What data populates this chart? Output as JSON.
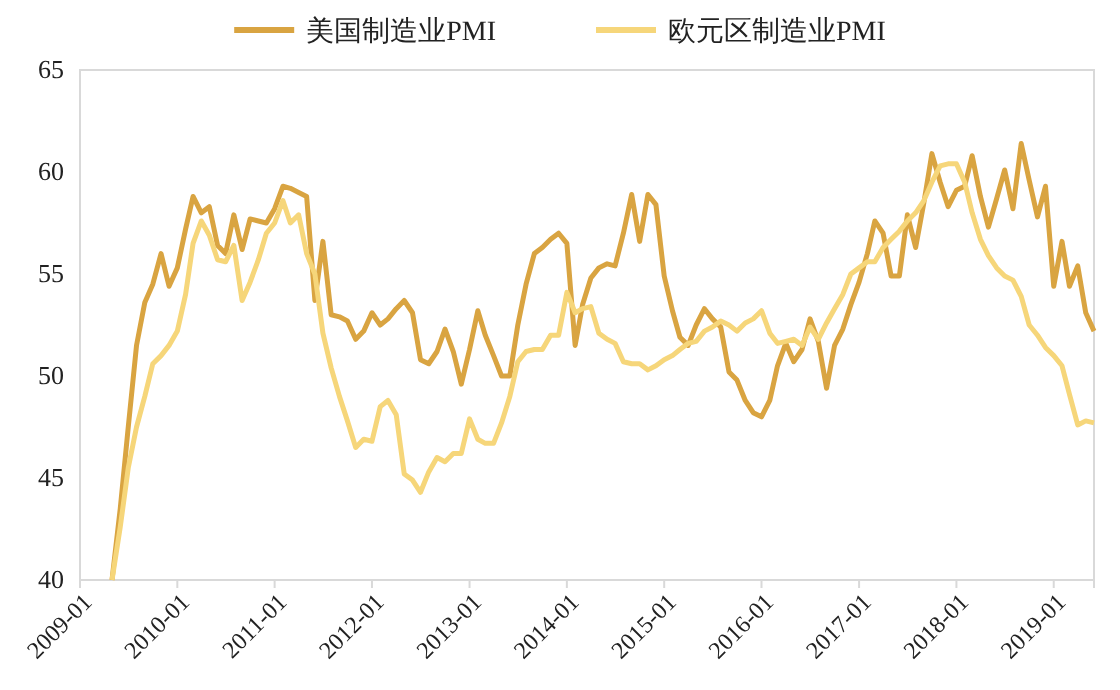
{
  "chart_data": {
    "type": "line",
    "x": [
      "2009-05",
      "2009-06",
      "2009-07",
      "2009-08",
      "2009-09",
      "2009-10",
      "2009-11",
      "2009-12",
      "2010-01",
      "2010-02",
      "2010-03",
      "2010-04",
      "2010-05",
      "2010-06",
      "2010-07",
      "2010-08",
      "2010-09",
      "2010-10",
      "2010-11",
      "2010-12",
      "2011-01",
      "2011-02",
      "2011-03",
      "2011-04",
      "2011-05",
      "2011-06",
      "2011-07",
      "2011-08",
      "2011-09",
      "2011-10",
      "2011-11",
      "2011-12",
      "2012-01",
      "2012-02",
      "2012-03",
      "2012-04",
      "2012-05",
      "2012-06",
      "2012-07",
      "2012-08",
      "2012-09",
      "2012-10",
      "2012-11",
      "2012-12",
      "2013-01",
      "2013-02",
      "2013-03",
      "2013-04",
      "2013-05",
      "2013-06",
      "2013-07",
      "2013-08",
      "2013-09",
      "2013-10",
      "2013-11",
      "2013-12",
      "2014-01",
      "2014-02",
      "2014-03",
      "2014-04",
      "2014-05",
      "2014-06",
      "2014-07",
      "2014-08",
      "2014-09",
      "2014-10",
      "2014-11",
      "2014-12",
      "2015-01",
      "2015-02",
      "2015-03",
      "2015-04",
      "2015-05",
      "2015-06",
      "2015-07",
      "2015-08",
      "2015-09",
      "2015-10",
      "2015-11",
      "2015-12",
      "2016-01",
      "2016-02",
      "2016-03",
      "2016-04",
      "2016-05",
      "2016-06",
      "2016-07",
      "2016-08",
      "2016-09",
      "2016-10",
      "2016-11",
      "2016-12",
      "2017-01",
      "2017-02",
      "2017-03",
      "2017-04",
      "2017-05",
      "2017-06",
      "2017-07",
      "2017-08",
      "2017-09",
      "2017-10",
      "2017-11",
      "2017-12",
      "2018-01",
      "2018-02",
      "2018-03",
      "2018-04",
      "2018-05",
      "2018-06",
      "2018-07",
      "2018-08",
      "2018-09",
      "2018-10",
      "2018-11",
      "2018-12",
      "2019-01",
      "2019-02",
      "2019-03",
      "2019-04",
      "2019-05",
      "2019-06"
    ],
    "series": [
      {
        "name": "美国制造业PMI",
        "color": "#d9a441",
        "values": [
          40,
          43.5,
          47.5,
          51.5,
          53.6,
          54.5,
          56.0,
          54.4,
          55.3,
          57.2,
          58.8,
          58.0,
          58.3,
          56.4,
          56.0,
          57.9,
          56.2,
          57.7,
          57.6,
          57.5,
          58.2,
          59.3,
          59.2,
          59.0,
          58.8,
          53.7,
          56.6,
          53.0,
          52.9,
          52.7,
          51.8,
          52.2,
          53.1,
          52.5,
          52.8,
          53.3,
          53.7,
          53.1,
          50.8,
          50.6,
          51.2,
          52.3,
          51.2,
          49.6,
          51.3,
          53.2,
          52.0,
          51.0,
          50.0,
          50.0,
          52.5,
          54.5,
          56.0,
          56.3,
          56.7,
          57.0,
          56.5,
          51.5,
          53.5,
          54.8,
          55.3,
          55.5,
          55.4,
          57.0,
          58.9,
          56.6,
          58.9,
          58.4,
          54.9,
          53.2,
          51.9,
          51.5,
          52.5,
          53.3,
          52.8,
          52.4,
          50.2,
          49.8,
          48.8,
          48.2,
          48.0,
          48.8,
          50.5,
          51.6,
          50.7,
          51.3,
          52.8,
          51.7,
          49.4,
          51.5,
          52.3,
          53.5,
          54.6,
          56.0,
          57.6,
          57.0,
          54.9,
          54.9,
          57.9,
          56.3,
          58.5,
          60.9,
          59.5,
          58.3,
          59.1,
          59.3,
          60.8,
          58.8,
          57.3,
          58.7,
          60.1,
          58.2,
          61.4,
          59.6,
          57.8,
          59.3,
          54.4,
          56.6,
          54.4,
          55.4,
          53.1,
          52.2
        ]
      },
      {
        "name": "欧元区制造业PMI",
        "color": "#f6d67a",
        "values": [
          40,
          42.6,
          45.5,
          47.5,
          49.0,
          50.6,
          51.0,
          51.5,
          52.2,
          54.0,
          56.5,
          57.6,
          56.9,
          55.7,
          55.6,
          56.4,
          53.7,
          54.6,
          55.7,
          57.0,
          57.5,
          58.6,
          57.5,
          57.9,
          56.0,
          55.0,
          52.1,
          50.4,
          49.0,
          47.8,
          46.5,
          46.9,
          46.8,
          48.5,
          48.8,
          48.1,
          45.2,
          44.9,
          44.3,
          45.3,
          46.0,
          45.8,
          46.2,
          46.2,
          47.9,
          46.9,
          46.7,
          46.7,
          47.7,
          49.0,
          50.7,
          51.2,
          51.3,
          51.3,
          52.0,
          52.0,
          54.1,
          53.1,
          53.3,
          53.4,
          52.1,
          51.8,
          51.6,
          50.7,
          50.6,
          50.6,
          50.3,
          50.5,
          50.8,
          51.0,
          51.3,
          51.6,
          51.7,
          52.2,
          52.4,
          52.7,
          52.5,
          52.2,
          52.6,
          52.8,
          53.2,
          52.1,
          51.6,
          51.7,
          51.8,
          51.5,
          52.4,
          51.8,
          52.6,
          53.3,
          54.0,
          55.0,
          55.3,
          55.6,
          55.6,
          56.3,
          56.7,
          57.1,
          57.6,
          58.0,
          58.6,
          59.5,
          60.3,
          60.4,
          60.4,
          59.5,
          58.0,
          56.7,
          55.9,
          55.3,
          54.9,
          54.7,
          53.9,
          52.5,
          52.0,
          51.4,
          51.0,
          50.5,
          49.1,
          47.6,
          47.8,
          47.7
        ]
      }
    ],
    "xlim": [
      "2009-01",
      "2019-06"
    ],
    "xticks": [
      "2009-01",
      "2010-01",
      "2011-01",
      "2012-01",
      "2013-01",
      "2014-01",
      "2015-01",
      "2016-01",
      "2017-01",
      "2018-01",
      "2019-01"
    ],
    "ylim": [
      40,
      65
    ],
    "yticks": [
      40,
      45,
      50,
      55,
      60,
      65
    ],
    "legend": "top",
    "grid": false,
    "marker": "none",
    "line_style": "solid"
  }
}
